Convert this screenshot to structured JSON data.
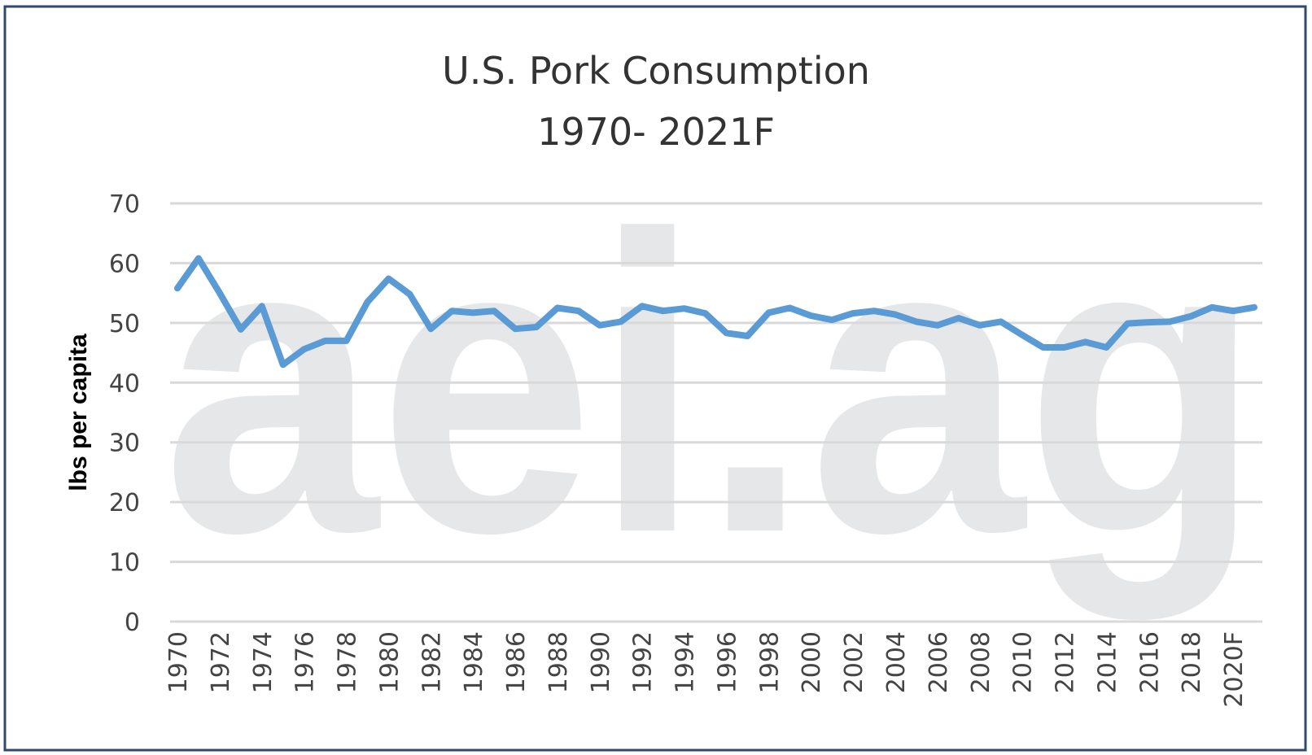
{
  "chart_data": {
    "type": "line",
    "title": "U.S. Pork Consumption",
    "subtitle": "1970- 2021F",
    "xlabel": "",
    "ylabel": "lbs per capita",
    "ylim": [
      0,
      70
    ],
    "yticks": [
      0,
      10,
      20,
      30,
      40,
      50,
      60,
      70
    ],
    "grid": true,
    "legend": "none",
    "watermark": "aei.ag",
    "x": [
      "1970",
      "1971",
      "1972",
      "1973",
      "1974",
      "1975",
      "1976",
      "1977",
      "1978",
      "1979",
      "1980",
      "1981",
      "1982",
      "1983",
      "1984",
      "1985",
      "1986",
      "1987",
      "1988",
      "1989",
      "1990",
      "1991",
      "1992",
      "1993",
      "1994",
      "1995",
      "1996",
      "1997",
      "1998",
      "1999",
      "2000",
      "2001",
      "2002",
      "2003",
      "2004",
      "2005",
      "2006",
      "2007",
      "2008",
      "2009",
      "2010",
      "2011",
      "2012",
      "2013",
      "2014",
      "2015",
      "2016",
      "2017",
      "2018",
      "2019",
      "2020F",
      "2021F"
    ],
    "xtick_labels": [
      "1970",
      "1972",
      "1974",
      "1976",
      "1978",
      "1980",
      "1982",
      "1984",
      "1986",
      "1988",
      "1990",
      "1992",
      "1994",
      "1996",
      "1998",
      "2000",
      "2002",
      "2004",
      "2006",
      "2008",
      "2010",
      "2012",
      "2014",
      "2016",
      "2018",
      "2020F"
    ],
    "series": [
      {
        "color": "#5b9bd5",
        "values": [
          55.8,
          60.8,
          55.0,
          48.9,
          52.8,
          43.0,
          45.6,
          47.0,
          47.0,
          53.5,
          57.4,
          54.8,
          49.0,
          52.0,
          51.7,
          52.0,
          49.0,
          49.3,
          52.5,
          52.0,
          49.6,
          50.2,
          52.8,
          52.0,
          52.4,
          51.6,
          48.3,
          47.8,
          51.7,
          52.5,
          51.2,
          50.5,
          51.6,
          52.0,
          51.4,
          50.2,
          49.6,
          50.8,
          49.6,
          50.2,
          48.0,
          45.9,
          45.9,
          46.8,
          45.9,
          49.9,
          50.1,
          50.2,
          51.1,
          52.6,
          52.0,
          52.6
        ]
      }
    ]
  }
}
